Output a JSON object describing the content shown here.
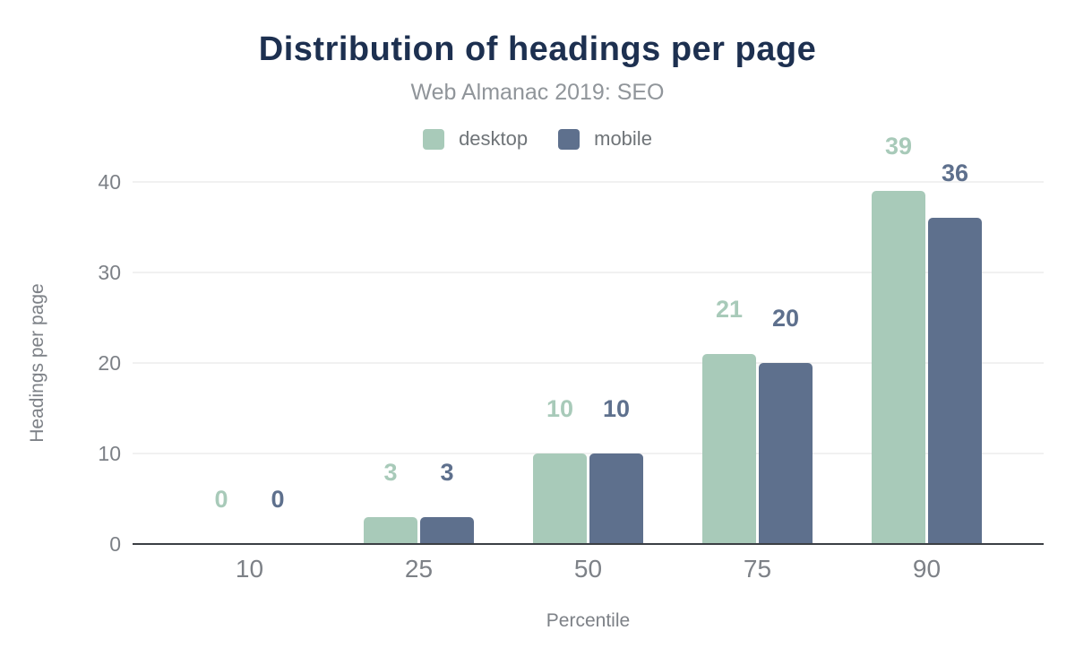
{
  "chart_data": {
    "type": "bar",
    "title": "Distribution of headings per page",
    "subtitle": "Web Almanac 2019: SEO",
    "categories": [
      "10",
      "25",
      "50",
      "75",
      "90"
    ],
    "series": [
      {
        "name": "desktop",
        "color": "#a8cab9",
        "values": [
          0,
          3,
          10,
          21,
          39
        ]
      },
      {
        "name": "mobile",
        "color": "#5e708d",
        "values": [
          0,
          3,
          10,
          20,
          36
        ]
      }
    ],
    "xlabel": "Percentile",
    "ylabel": "Headings per page",
    "ylim": [
      0,
      40
    ],
    "yticks": [
      0,
      10,
      20,
      30,
      40
    ],
    "grid": true,
    "legend_position": "top",
    "value_labels": true
  },
  "colors": {
    "title": "#1d3050",
    "subtitle": "#90959a",
    "axis_text": "#7d8187",
    "legend_text": "#6f7478",
    "gridline": "#f1f1f1",
    "baseline": "#3b3f44"
  }
}
